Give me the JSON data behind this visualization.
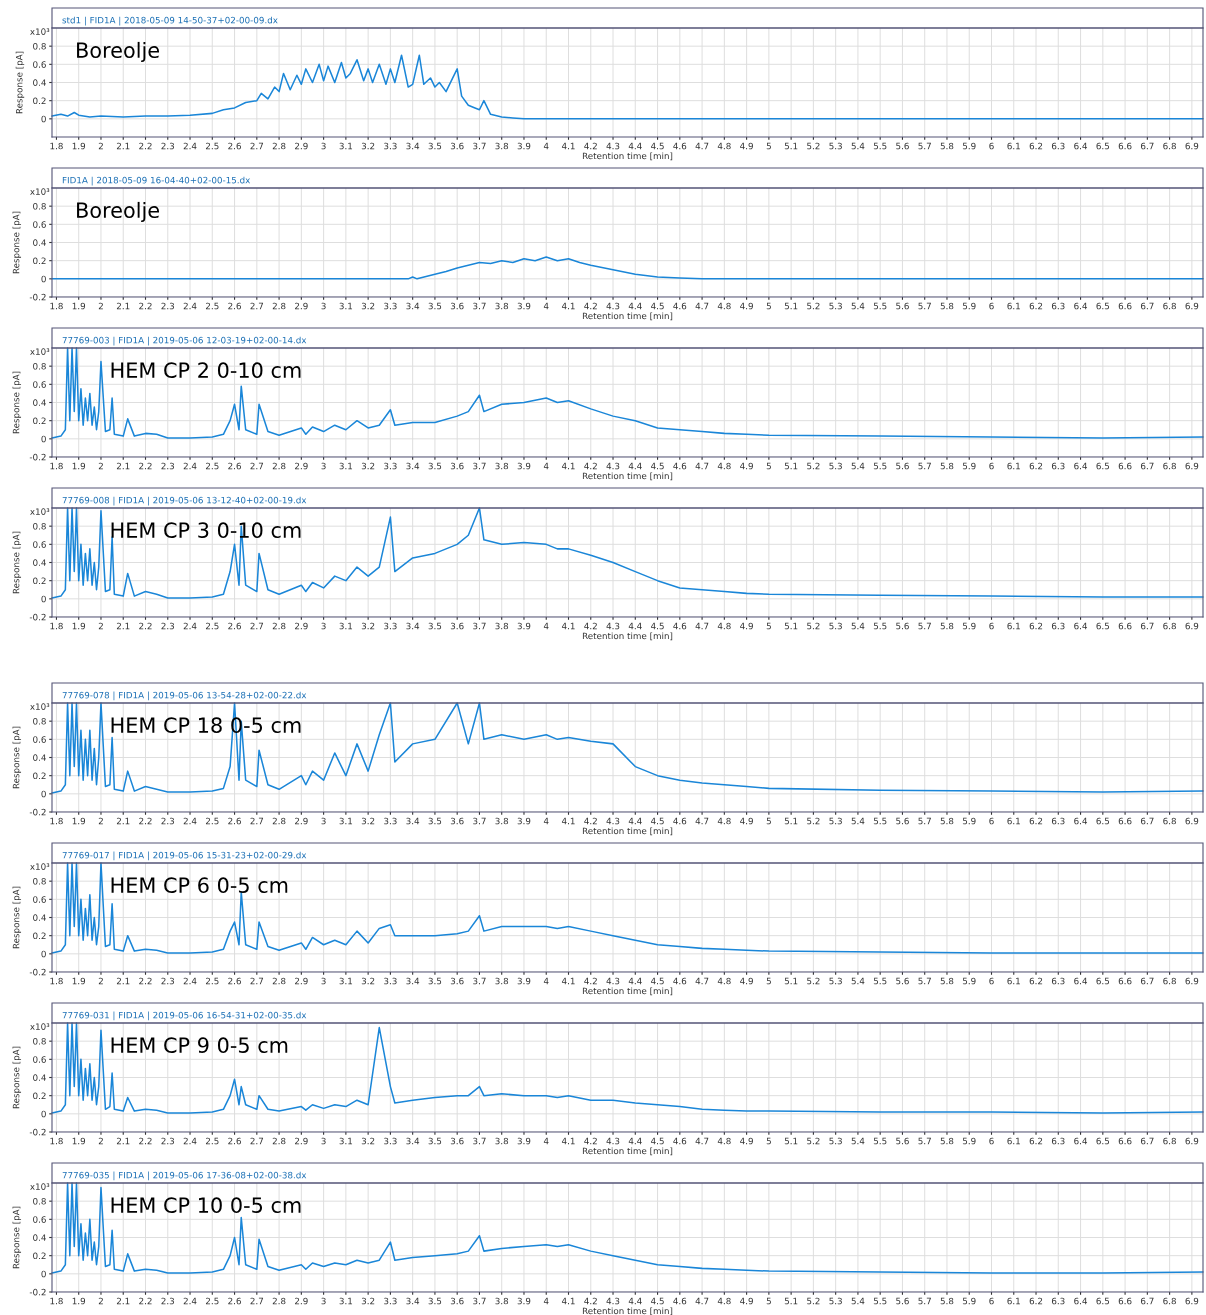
{
  "chart_data": [
    {
      "type": "line",
      "title": "std1 | FID1A | 2018-05-09 14-50-37+02-00-09.dx",
      "xlabel": "Retention time [min]",
      "ylabel": "Response [pA]",
      "annotations": [
        "x10³",
        "Boreolje"
      ],
      "color": "#1a86d8",
      "grid": true,
      "xlim": [
        1.78,
        6.95
      ],
      "ylim": [
        -0.2,
        1.0
      ],
      "yticks": [
        0,
        0.2,
        0.4,
        0.6,
        0.8
      ],
      "xticks": [
        1.8,
        1.9,
        2,
        2.1,
        2.2,
        2.3,
        2.4,
        2.5,
        2.6,
        2.7,
        2.8,
        2.9,
        3,
        3.1,
        3.2,
        3.3,
        3.4,
        3.5,
        3.6,
        3.7,
        3.8,
        3.9,
        4,
        4.1,
        4.2,
        4.3,
        4.4,
        4.5,
        4.6,
        4.7,
        4.8,
        4.9,
        5,
        5.1,
        5.2,
        5.3,
        5.4,
        5.5,
        5.6,
        5.7,
        5.8,
        5.9,
        6,
        6.1,
        6.2,
        6.3,
        6.4,
        6.5,
        6.6,
        6.7,
        6.8,
        6.9
      ],
      "x": [
        1.78,
        1.82,
        1.85,
        1.88,
        1.9,
        1.95,
        2.0,
        2.1,
        2.2,
        2.3,
        2.4,
        2.5,
        2.55,
        2.6,
        2.65,
        2.7,
        2.72,
        2.75,
        2.78,
        2.8,
        2.82,
        2.85,
        2.88,
        2.9,
        2.92,
        2.95,
        2.98,
        3.0,
        3.02,
        3.05,
        3.08,
        3.1,
        3.12,
        3.15,
        3.18,
        3.2,
        3.22,
        3.25,
        3.28,
        3.3,
        3.32,
        3.35,
        3.38,
        3.4,
        3.43,
        3.45,
        3.48,
        3.5,
        3.52,
        3.55,
        3.58,
        3.6,
        3.62,
        3.65,
        3.68,
        3.7,
        3.72,
        3.75,
        3.8,
        3.85,
        3.9,
        4.5,
        5.5,
        6.95
      ],
      "values": [
        0.03,
        0.05,
        0.03,
        0.07,
        0.04,
        0.02,
        0.03,
        0.02,
        0.03,
        0.03,
        0.04,
        0.06,
        0.1,
        0.12,
        0.18,
        0.2,
        0.28,
        0.22,
        0.35,
        0.3,
        0.5,
        0.32,
        0.48,
        0.38,
        0.55,
        0.4,
        0.6,
        0.42,
        0.58,
        0.4,
        0.62,
        0.45,
        0.5,
        0.65,
        0.42,
        0.55,
        0.4,
        0.6,
        0.38,
        0.55,
        0.4,
        0.7,
        0.35,
        0.38,
        0.7,
        0.38,
        0.45,
        0.35,
        0.4,
        0.3,
        0.45,
        0.55,
        0.25,
        0.15,
        0.12,
        0.1,
        0.2,
        0.05,
        0.02,
        0.01,
        0,
        0,
        0,
        0
      ]
    },
    {
      "type": "line",
      "title": "FID1A | 2018-05-09 16-04-40+02-00-15.dx",
      "xlabel": "Retention time [min]",
      "ylabel": "Response [pA]",
      "annotations": [
        "x10³",
        "Boreolje"
      ],
      "color": "#1a86d8",
      "grid": true,
      "xlim": [
        1.78,
        6.95
      ],
      "ylim": [
        -0.2,
        1.0
      ],
      "yticks": [
        -0.2,
        0,
        0.2,
        0.4,
        0.6,
        0.8
      ],
      "xticks": [
        1.8,
        1.9,
        2,
        2.1,
        2.2,
        2.3,
        2.4,
        2.5,
        2.6,
        2.7,
        2.8,
        2.9,
        3,
        3.1,
        3.2,
        3.3,
        3.4,
        3.5,
        3.6,
        3.7,
        3.8,
        3.9,
        4,
        4.1,
        4.2,
        4.3,
        4.4,
        4.5,
        4.6,
        4.7,
        4.8,
        4.9,
        5,
        5.1,
        5.2,
        5.3,
        5.4,
        5.5,
        5.6,
        5.7,
        5.8,
        5.9,
        6,
        6.1,
        6.2,
        6.3,
        6.4,
        6.5,
        6.6,
        6.7,
        6.8,
        6.9
      ],
      "x": [
        1.78,
        3.38,
        3.4,
        3.42,
        3.5,
        3.55,
        3.6,
        3.65,
        3.7,
        3.75,
        3.8,
        3.85,
        3.9,
        3.95,
        4.0,
        4.05,
        4.1,
        4.15,
        4.2,
        4.3,
        4.4,
        4.5,
        4.6,
        4.7,
        6.95
      ],
      "values": [
        0,
        0,
        0.02,
        0,
        0.05,
        0.08,
        0.12,
        0.15,
        0.18,
        0.17,
        0.2,
        0.18,
        0.22,
        0.2,
        0.24,
        0.2,
        0.22,
        0.18,
        0.15,
        0.1,
        0.05,
        0.02,
        0.01,
        0,
        0
      ]
    },
    {
      "type": "line",
      "title": "77769-003 | FID1A | 2019-05-06 12-03-19+02-00-14.dx",
      "xlabel": "Retention time [min]",
      "ylabel": "Response [pA]",
      "annotations": [
        "x10³",
        "HEM CP 2 0-10 cm"
      ],
      "color": "#1a86d8",
      "grid": true,
      "xlim": [
        1.78,
        6.95
      ],
      "ylim": [
        -0.2,
        1.0
      ],
      "yticks": [
        -0.2,
        0,
        0.2,
        0.4,
        0.6,
        0.8
      ],
      "xticks": [
        1.8,
        1.9,
        2,
        2.1,
        2.2,
        2.3,
        2.4,
        2.5,
        2.6,
        2.7,
        2.8,
        2.9,
        3,
        3.1,
        3.2,
        3.3,
        3.4,
        3.5,
        3.6,
        3.7,
        3.8,
        3.9,
        4,
        4.1,
        4.2,
        4.3,
        4.4,
        4.5,
        4.6,
        4.7,
        4.8,
        4.9,
        5,
        5.1,
        5.2,
        5.3,
        5.4,
        5.5,
        5.6,
        5.7,
        5.8,
        5.9,
        6,
        6.1,
        6.2,
        6.3,
        6.4,
        6.5,
        6.6,
        6.7,
        6.8,
        6.9
      ],
      "x": [
        1.78,
        1.82,
        1.84,
        1.85,
        1.86,
        1.87,
        1.88,
        1.89,
        1.9,
        1.91,
        1.92,
        1.93,
        1.94,
        1.95,
        1.96,
        1.97,
        1.98,
        1.99,
        2.0,
        2.02,
        2.04,
        2.05,
        2.06,
        2.1,
        2.12,
        2.15,
        2.2,
        2.25,
        2.3,
        2.4,
        2.5,
        2.55,
        2.58,
        2.6,
        2.62,
        2.63,
        2.65,
        2.7,
        2.71,
        2.75,
        2.8,
        2.9,
        2.92,
        2.95,
        3.0,
        3.05,
        3.1,
        3.15,
        3.2,
        3.25,
        3.3,
        3.32,
        3.4,
        3.5,
        3.6,
        3.65,
        3.7,
        3.72,
        3.8,
        3.9,
        4.0,
        4.05,
        4.1,
        4.2,
        4.3,
        4.4,
        4.5,
        4.6,
        4.7,
        4.8,
        4.9,
        5.0,
        5.5,
        6.0,
        6.5,
        6.95
      ],
      "values": [
        0.01,
        0.03,
        0.1,
        1.0,
        0.2,
        1.0,
        0.3,
        1.0,
        0.2,
        0.55,
        0.15,
        0.45,
        0.2,
        0.5,
        0.15,
        0.35,
        0.1,
        0.3,
        0.85,
        0.08,
        0.1,
        0.45,
        0.05,
        0.03,
        0.22,
        0.03,
        0.06,
        0.05,
        0.01,
        0.01,
        0.02,
        0.05,
        0.2,
        0.38,
        0.1,
        0.58,
        0.1,
        0.05,
        0.38,
        0.08,
        0.04,
        0.12,
        0.05,
        0.13,
        0.08,
        0.15,
        0.1,
        0.2,
        0.12,
        0.15,
        0.32,
        0.15,
        0.18,
        0.18,
        0.25,
        0.3,
        0.48,
        0.3,
        0.38,
        0.4,
        0.45,
        0.4,
        0.42,
        0.33,
        0.25,
        0.2,
        0.12,
        0.1,
        0.08,
        0.06,
        0.05,
        0.04,
        0.03,
        0.02,
        0.01,
        0.02
      ]
    },
    {
      "type": "line",
      "title": "77769-008 | FID1A | 2019-05-06 13-12-40+02-00-19.dx",
      "xlabel": "Retention time [min]",
      "ylabel": "Response [pA]",
      "annotations": [
        "x10³",
        "HEM CP 3 0-10 cm"
      ],
      "color": "#1a86d8",
      "grid": true,
      "xlim": [
        1.78,
        6.95
      ],
      "ylim": [
        -0.2,
        1.0
      ],
      "yticks": [
        -0.2,
        0,
        0.2,
        0.4,
        0.6,
        0.8
      ],
      "xticks": [
        1.8,
        1.9,
        2,
        2.1,
        2.2,
        2.3,
        2.4,
        2.5,
        2.6,
        2.7,
        2.8,
        2.9,
        3,
        3.1,
        3.2,
        3.3,
        3.4,
        3.5,
        3.6,
        3.7,
        3.8,
        3.9,
        4,
        4.1,
        4.2,
        4.3,
        4.4,
        4.5,
        4.6,
        4.7,
        4.8,
        4.9,
        5,
        5.1,
        5.2,
        5.3,
        5.4,
        5.5,
        5.6,
        5.7,
        5.8,
        5.9,
        6,
        6.1,
        6.2,
        6.3,
        6.4,
        6.5,
        6.6,
        6.7,
        6.8,
        6.9
      ],
      "x": [
        1.78,
        1.82,
        1.84,
        1.85,
        1.86,
        1.87,
        1.88,
        1.89,
        1.9,
        1.91,
        1.92,
        1.93,
        1.94,
        1.95,
        1.96,
        1.97,
        1.98,
        1.99,
        2.0,
        2.02,
        2.04,
        2.05,
        2.06,
        2.1,
        2.12,
        2.15,
        2.2,
        2.25,
        2.3,
        2.4,
        2.5,
        2.55,
        2.58,
        2.6,
        2.62,
        2.63,
        2.65,
        2.7,
        2.71,
        2.75,
        2.8,
        2.9,
        2.92,
        2.95,
        3.0,
        3.05,
        3.1,
        3.15,
        3.2,
        3.25,
        3.3,
        3.32,
        3.4,
        3.5,
        3.6,
        3.65,
        3.7,
        3.72,
        3.8,
        3.9,
        4.0,
        4.05,
        4.1,
        4.2,
        4.3,
        4.4,
        4.5,
        4.6,
        4.7,
        4.8,
        4.9,
        5.0,
        5.5,
        6.0,
        6.5,
        6.95
      ],
      "values": [
        0.01,
        0.03,
        0.1,
        1.0,
        0.2,
        1.0,
        0.3,
        1.0,
        0.2,
        0.6,
        0.15,
        0.5,
        0.2,
        0.55,
        0.15,
        0.4,
        0.1,
        0.35,
        0.97,
        0.08,
        0.1,
        0.68,
        0.05,
        0.03,
        0.28,
        0.03,
        0.08,
        0.05,
        0.01,
        0.01,
        0.02,
        0.05,
        0.3,
        0.6,
        0.15,
        0.8,
        0.15,
        0.08,
        0.5,
        0.1,
        0.05,
        0.15,
        0.08,
        0.18,
        0.12,
        0.25,
        0.2,
        0.35,
        0.25,
        0.35,
        0.9,
        0.3,
        0.45,
        0.5,
        0.6,
        0.7,
        1.0,
        0.65,
        0.6,
        0.62,
        0.6,
        0.55,
        0.55,
        0.48,
        0.4,
        0.3,
        0.2,
        0.12,
        0.1,
        0.08,
        0.06,
        0.05,
        0.04,
        0.03,
        0.02,
        0.02
      ]
    },
    {
      "type": "line",
      "title": "77769-078 | FID1A | 2019-05-06 13-54-28+02-00-22.dx",
      "xlabel": "Retention time [min]",
      "ylabel": "Response [pA]",
      "annotations": [
        "x10³",
        "HEM CP 18 0-5 cm"
      ],
      "color": "#1a86d8",
      "grid": true,
      "xlim": [
        1.78,
        6.95
      ],
      "ylim": [
        -0.2,
        1.0
      ],
      "yticks": [
        -0.2,
        0,
        0.2,
        0.4,
        0.6,
        0.8
      ],
      "xticks": [
        1.8,
        1.9,
        2,
        2.1,
        2.2,
        2.3,
        2.4,
        2.5,
        2.6,
        2.7,
        2.8,
        2.9,
        3,
        3.1,
        3.2,
        3.3,
        3.4,
        3.5,
        3.6,
        3.7,
        3.8,
        3.9,
        4,
        4.1,
        4.2,
        4.3,
        4.4,
        4.5,
        4.6,
        4.7,
        4.8,
        4.9,
        5,
        5.1,
        5.2,
        5.3,
        5.4,
        5.5,
        5.6,
        5.7,
        5.8,
        5.9,
        6,
        6.1,
        6.2,
        6.3,
        6.4,
        6.5,
        6.6,
        6.7,
        6.8,
        6.9
      ],
      "x": [
        1.78,
        1.82,
        1.84,
        1.85,
        1.86,
        1.87,
        1.88,
        1.89,
        1.9,
        1.91,
        1.92,
        1.93,
        1.94,
        1.95,
        1.96,
        1.97,
        1.98,
        1.99,
        2.0,
        2.02,
        2.04,
        2.05,
        2.06,
        2.1,
        2.12,
        2.15,
        2.2,
        2.25,
        2.3,
        2.4,
        2.5,
        2.55,
        2.58,
        2.6,
        2.62,
        2.63,
        2.65,
        2.7,
        2.71,
        2.75,
        2.8,
        2.9,
        2.92,
        2.95,
        3.0,
        3.05,
        3.1,
        3.15,
        3.2,
        3.25,
        3.3,
        3.32,
        3.4,
        3.5,
        3.6,
        3.65,
        3.7,
        3.72,
        3.8,
        3.9,
        4.0,
        4.05,
        4.1,
        4.2,
        4.3,
        4.4,
        4.5,
        4.6,
        4.7,
        4.8,
        4.9,
        5.0,
        5.5,
        6.0,
        6.5,
        6.95
      ],
      "values": [
        0.01,
        0.03,
        0.1,
        1.0,
        0.2,
        1.0,
        0.3,
        1.0,
        0.2,
        0.7,
        0.15,
        0.6,
        0.2,
        0.7,
        0.15,
        0.5,
        0.1,
        0.4,
        1.0,
        0.08,
        0.1,
        0.62,
        0.05,
        0.03,
        0.25,
        0.03,
        0.08,
        0.05,
        0.02,
        0.02,
        0.03,
        0.06,
        0.3,
        1.0,
        0.15,
        0.8,
        0.15,
        0.08,
        0.48,
        0.1,
        0.05,
        0.2,
        0.1,
        0.25,
        0.15,
        0.45,
        0.2,
        0.55,
        0.25,
        0.65,
        1.0,
        0.35,
        0.55,
        0.6,
        1.0,
        0.55,
        1.0,
        0.6,
        0.65,
        0.6,
        0.65,
        0.6,
        0.62,
        0.58,
        0.55,
        0.3,
        0.2,
        0.15,
        0.12,
        0.1,
        0.08,
        0.06,
        0.04,
        0.03,
        0.02,
        0.03
      ]
    },
    {
      "type": "line",
      "title": "77769-017 | FID1A | 2019-05-06 15-31-23+02-00-29.dx",
      "xlabel": "Retention time [min]",
      "ylabel": "Response [pA]",
      "annotations": [
        "x10³",
        "HEM CP 6 0-5 cm"
      ],
      "color": "#1a86d8",
      "grid": true,
      "xlim": [
        1.78,
        6.95
      ],
      "ylim": [
        -0.2,
        1.0
      ],
      "yticks": [
        -0.2,
        0,
        0.2,
        0.4,
        0.6,
        0.8
      ],
      "xticks": [
        1.8,
        1.9,
        2,
        2.1,
        2.2,
        2.3,
        2.4,
        2.5,
        2.6,
        2.7,
        2.8,
        2.9,
        3,
        3.1,
        3.2,
        3.3,
        3.4,
        3.5,
        3.6,
        3.7,
        3.8,
        3.9,
        4,
        4.1,
        4.2,
        4.3,
        4.4,
        4.5,
        4.6,
        4.7,
        4.8,
        4.9,
        5,
        5.1,
        5.2,
        5.3,
        5.4,
        5.5,
        5.6,
        5.7,
        5.8,
        5.9,
        6,
        6.1,
        6.2,
        6.3,
        6.4,
        6.5,
        6.6,
        6.7,
        6.8,
        6.9
      ],
      "x": [
        1.78,
        1.82,
        1.84,
        1.85,
        1.86,
        1.87,
        1.88,
        1.89,
        1.9,
        1.91,
        1.92,
        1.93,
        1.94,
        1.95,
        1.96,
        1.97,
        1.98,
        1.99,
        2.0,
        2.02,
        2.04,
        2.05,
        2.06,
        2.1,
        2.12,
        2.15,
        2.2,
        2.25,
        2.3,
        2.4,
        2.5,
        2.55,
        2.58,
        2.6,
        2.62,
        2.63,
        2.65,
        2.7,
        2.71,
        2.75,
        2.8,
        2.9,
        2.92,
        2.95,
        3.0,
        3.05,
        3.1,
        3.15,
        3.2,
        3.25,
        3.3,
        3.32,
        3.4,
        3.5,
        3.6,
        3.65,
        3.7,
        3.72,
        3.8,
        3.9,
        4.0,
        4.05,
        4.1,
        4.2,
        4.3,
        4.4,
        4.5,
        4.6,
        4.7,
        4.8,
        4.9,
        5.0,
        5.5,
        6.0,
        6.5,
        6.95
      ],
      "values": [
        0.01,
        0.03,
        0.1,
        1.0,
        0.2,
        1.0,
        0.3,
        1.0,
        0.2,
        0.6,
        0.15,
        0.5,
        0.2,
        0.65,
        0.15,
        0.4,
        0.1,
        0.3,
        1.0,
        0.08,
        0.1,
        0.55,
        0.05,
        0.03,
        0.2,
        0.03,
        0.05,
        0.04,
        0.01,
        0.01,
        0.02,
        0.05,
        0.25,
        0.35,
        0.1,
        0.68,
        0.1,
        0.05,
        0.35,
        0.08,
        0.04,
        0.12,
        0.05,
        0.18,
        0.1,
        0.15,
        0.1,
        0.25,
        0.12,
        0.28,
        0.32,
        0.2,
        0.2,
        0.2,
        0.22,
        0.25,
        0.42,
        0.25,
        0.3,
        0.3,
        0.3,
        0.28,
        0.3,
        0.25,
        0.2,
        0.15,
        0.1,
        0.08,
        0.06,
        0.05,
        0.04,
        0.03,
        0.02,
        0.01,
        0.01,
        0.01
      ]
    },
    {
      "type": "line",
      "title": "77769-031 | FID1A | 2019-05-06 16-54-31+02-00-35.dx",
      "xlabel": "Retention time [min]",
      "ylabel": "Response [pA]",
      "annotations": [
        "x10³",
        "HEM CP 9 0-5 cm"
      ],
      "color": "#1a86d8",
      "grid": true,
      "xlim": [
        1.78,
        6.95
      ],
      "ylim": [
        -0.2,
        1.0
      ],
      "yticks": [
        -0.2,
        0,
        0.2,
        0.4,
        0.6,
        0.8
      ],
      "xticks": [
        1.8,
        1.9,
        2,
        2.1,
        2.2,
        2.3,
        2.4,
        2.5,
        2.6,
        2.7,
        2.8,
        2.9,
        3,
        3.1,
        3.2,
        3.3,
        3.4,
        3.5,
        3.6,
        3.7,
        3.8,
        3.9,
        4,
        4.1,
        4.2,
        4.3,
        4.4,
        4.5,
        4.6,
        4.7,
        4.8,
        4.9,
        5,
        5.1,
        5.2,
        5.3,
        5.4,
        5.5,
        5.6,
        5.7,
        5.8,
        5.9,
        6,
        6.1,
        6.2,
        6.3,
        6.4,
        6.5,
        6.6,
        6.7,
        6.8,
        6.9
      ],
      "x": [
        1.78,
        1.82,
        1.84,
        1.85,
        1.86,
        1.87,
        1.88,
        1.89,
        1.9,
        1.91,
        1.92,
        1.93,
        1.94,
        1.95,
        1.96,
        1.97,
        1.98,
        1.99,
        2.0,
        2.02,
        2.04,
        2.05,
        2.06,
        2.1,
        2.12,
        2.15,
        2.2,
        2.25,
        2.3,
        2.4,
        2.5,
        2.55,
        2.58,
        2.6,
        2.62,
        2.63,
        2.65,
        2.7,
        2.71,
        2.75,
        2.8,
        2.9,
        2.92,
        2.95,
        3.0,
        3.05,
        3.1,
        3.15,
        3.2,
        3.25,
        3.3,
        3.32,
        3.4,
        3.5,
        3.6,
        3.65,
        3.7,
        3.72,
        3.8,
        3.9,
        4.0,
        4.05,
        4.1,
        4.2,
        4.3,
        4.4,
        4.5,
        4.6,
        4.7,
        4.8,
        4.9,
        5.0,
        5.5,
        6.0,
        6.5,
        6.95
      ],
      "values": [
        0.01,
        0.03,
        0.1,
        1.0,
        0.2,
        1.0,
        0.3,
        1.0,
        0.2,
        0.6,
        0.15,
        0.5,
        0.2,
        0.55,
        0.15,
        0.4,
        0.1,
        0.3,
        0.92,
        0.05,
        0.08,
        0.45,
        0.05,
        0.03,
        0.18,
        0.03,
        0.05,
        0.04,
        0.01,
        0.01,
        0.02,
        0.05,
        0.2,
        0.38,
        0.1,
        0.3,
        0.1,
        0.05,
        0.2,
        0.05,
        0.03,
        0.08,
        0.04,
        0.1,
        0.06,
        0.1,
        0.08,
        0.15,
        0.1,
        0.95,
        0.3,
        0.12,
        0.15,
        0.18,
        0.2,
        0.2,
        0.3,
        0.2,
        0.22,
        0.2,
        0.2,
        0.18,
        0.2,
        0.15,
        0.15,
        0.12,
        0.1,
        0.08,
        0.05,
        0.04,
        0.03,
        0.03,
        0.02,
        0.02,
        0.01,
        0.02
      ]
    },
    {
      "type": "line",
      "title": "77769-035 | FID1A | 2019-05-06 17-36-08+02-00-38.dx",
      "xlabel": "Retention time [min]",
      "ylabel": "Response [pA]",
      "annotations": [
        "x10³",
        "HEM CP 10 0-5 cm"
      ],
      "color": "#1a86d8",
      "grid": true,
      "xlim": [
        1.78,
        6.95
      ],
      "ylim": [
        -0.2,
        1.0
      ],
      "yticks": [
        -0.2,
        0,
        0.2,
        0.4,
        0.6,
        0.8
      ],
      "xticks": [
        1.8,
        1.9,
        2,
        2.1,
        2.2,
        2.3,
        2.4,
        2.5,
        2.6,
        2.7,
        2.8,
        2.9,
        3,
        3.1,
        3.2,
        3.3,
        3.4,
        3.5,
        3.6,
        3.7,
        3.8,
        3.9,
        4,
        4.1,
        4.2,
        4.3,
        4.4,
        4.5,
        4.6,
        4.7,
        4.8,
        4.9,
        5,
        5.1,
        5.2,
        5.3,
        5.4,
        5.5,
        5.6,
        5.7,
        5.8,
        5.9,
        6,
        6.1,
        6.2,
        6.3,
        6.4,
        6.5,
        6.6,
        6.7,
        6.8,
        6.9
      ],
      "x": [
        1.78,
        1.82,
        1.84,
        1.85,
        1.86,
        1.87,
        1.88,
        1.89,
        1.9,
        1.91,
        1.92,
        1.93,
        1.94,
        1.95,
        1.96,
        1.97,
        1.98,
        1.99,
        2.0,
        2.02,
        2.04,
        2.05,
        2.06,
        2.1,
        2.12,
        2.15,
        2.2,
        2.25,
        2.3,
        2.4,
        2.5,
        2.55,
        2.58,
        2.6,
        2.62,
        2.63,
        2.65,
        2.7,
        2.71,
        2.75,
        2.8,
        2.9,
        2.92,
        2.95,
        3.0,
        3.05,
        3.1,
        3.15,
        3.2,
        3.25,
        3.3,
        3.32,
        3.4,
        3.5,
        3.6,
        3.65,
        3.7,
        3.72,
        3.8,
        3.9,
        4.0,
        4.05,
        4.1,
        4.2,
        4.3,
        4.4,
        4.5,
        4.6,
        4.7,
        4.8,
        4.9,
        5.0,
        5.5,
        6.0,
        6.5,
        6.95
      ],
      "values": [
        0.01,
        0.03,
        0.1,
        1.0,
        0.2,
        1.0,
        0.3,
        1.0,
        0.2,
        0.55,
        0.15,
        0.45,
        0.2,
        0.6,
        0.15,
        0.35,
        0.1,
        0.3,
        0.95,
        0.08,
        0.1,
        0.48,
        0.05,
        0.03,
        0.22,
        0.03,
        0.05,
        0.04,
        0.01,
        0.01,
        0.02,
        0.05,
        0.2,
        0.4,
        0.1,
        0.62,
        0.1,
        0.05,
        0.38,
        0.08,
        0.04,
        0.1,
        0.05,
        0.12,
        0.08,
        0.12,
        0.1,
        0.15,
        0.12,
        0.15,
        0.35,
        0.15,
        0.18,
        0.2,
        0.22,
        0.25,
        0.42,
        0.25,
        0.28,
        0.3,
        0.32,
        0.3,
        0.32,
        0.25,
        0.2,
        0.15,
        0.1,
        0.08,
        0.06,
        0.05,
        0.04,
        0.03,
        0.02,
        0.01,
        0.01,
        0.02
      ]
    }
  ]
}
